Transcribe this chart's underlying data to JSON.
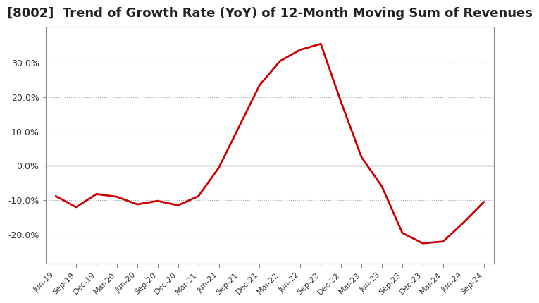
{
  "title": "[8002]  Trend of Growth Rate (YoY) of 12-Month Moving Sum of Revenues",
  "title_fontsize": 13,
  "line_color": "#cc0000",
  "background_color": "#ffffff",
  "grid_color": "#aaaaaa",
  "ylim": [
    -0.285,
    0.405
  ],
  "yticks": [
    -0.2,
    -0.1,
    0.0,
    0.1,
    0.2,
    0.3
  ],
  "ytick_labels": [
    "-20.0%",
    "-10.0%",
    "0.0%",
    "10.0%",
    "20.0%",
    "30.0%"
  ],
  "dates": [
    "Jun-19",
    "Sep-19",
    "Dec-19",
    "Mar-20",
    "Jun-20",
    "Sep-20",
    "Dec-20",
    "Mar-21",
    "Jun-21",
    "Sep-21",
    "Dec-21",
    "Mar-22",
    "Jun-22",
    "Sep-22",
    "Dec-22",
    "Mar-23",
    "Jun-23",
    "Sep-23",
    "Dec-23",
    "Mar-24",
    "Jun-24",
    "Sep-24"
  ],
  "values": [
    -0.088,
    -0.12,
    -0.082,
    -0.09,
    -0.112,
    -0.102,
    -0.115,
    -0.088,
    -0.005,
    0.115,
    0.235,
    0.305,
    0.338,
    0.355,
    0.185,
    0.025,
    -0.06,
    -0.195,
    -0.225,
    -0.22,
    -0.165,
    -0.105
  ]
}
